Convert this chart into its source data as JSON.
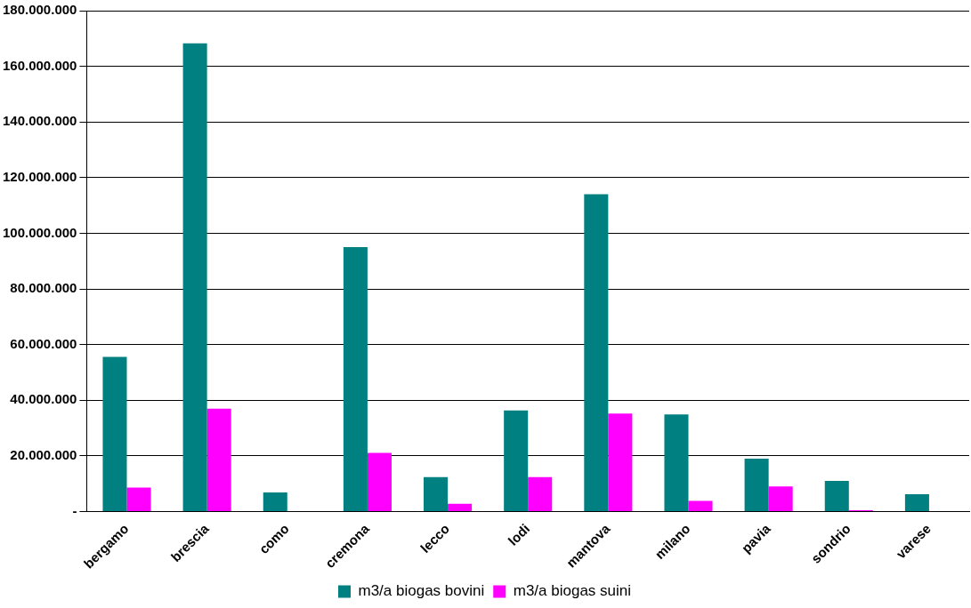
{
  "chart_data": {
    "type": "bar",
    "categories": [
      "bergamo",
      "brescia",
      "como",
      "cremona",
      "lecco",
      "lodi",
      "mantova",
      "milano",
      "pavia",
      "sondrio",
      "varese"
    ],
    "series": [
      {
        "name": "m3/a biogas bovini",
        "color": "#008080",
        "values": [
          55600000,
          168300000,
          6900000,
          95000000,
          12400000,
          36300000,
          114000000,
          34900000,
          19000000,
          11000000,
          6200000
        ]
      },
      {
        "name": "m3/a biogas suini",
        "color": "#ff00ff",
        "values": [
          8600000,
          37000000,
          0,
          21100000,
          2800000,
          12400000,
          35200000,
          3800000,
          9000000,
          500000,
          0
        ]
      }
    ],
    "ylim": [
      0,
      180000000
    ],
    "yticks": [
      {
        "value": 0,
        "label": "-"
      },
      {
        "value": 20000000,
        "label": "20.000.000"
      },
      {
        "value": 40000000,
        "label": "40.000.000"
      },
      {
        "value": 60000000,
        "label": "60.000.000"
      },
      {
        "value": 80000000,
        "label": "80.000.000"
      },
      {
        "value": 100000000,
        "label": "100.000.000"
      },
      {
        "value": 120000000,
        "label": "120.000.000"
      },
      {
        "value": 140000000,
        "label": "140.000.000"
      },
      {
        "value": 160000000,
        "label": "160.000.000"
      },
      {
        "value": 180000000,
        "label": "180.000.000"
      }
    ],
    "grid": "y",
    "legend": "bottom"
  }
}
